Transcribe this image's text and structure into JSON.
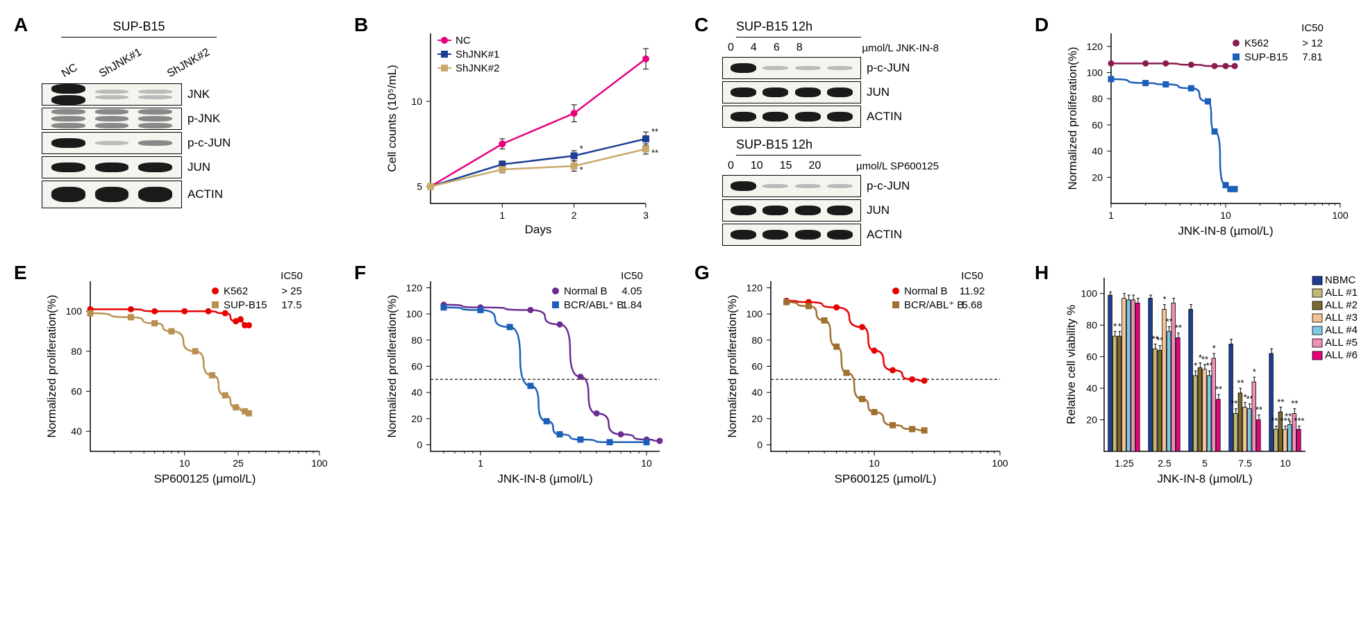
{
  "panelA": {
    "label": "A",
    "header": "SUP-B15",
    "lanes": [
      "NC",
      "ShJNK#1",
      "ShJNK#2"
    ],
    "rows": [
      {
        "label": "JNK",
        "intensities": [
          "strong",
          "faint",
          "faint"
        ],
        "doublet": true
      },
      {
        "label": "p-JNK",
        "intensities": [
          "weak",
          "weak",
          "weak"
        ],
        "triplet": true
      },
      {
        "label": "p-c-JUN",
        "intensities": [
          "strong",
          "faint",
          "weak"
        ]
      },
      {
        "label": "JUN",
        "intensities": [
          "strong",
          "strong",
          "strong"
        ]
      },
      {
        "label": "ACTIN",
        "intensities": [
          "strong",
          "strong",
          "strong"
        ],
        "thick": true
      }
    ]
  },
  "panelB": {
    "label": "B",
    "type": "line",
    "xlabel": "Days",
    "ylabel": "Cell counts (10⁵/mL)",
    "xlim": [
      0,
      3
    ],
    "ylim": [
      4,
      14
    ],
    "xticks": [
      1,
      2,
      3
    ],
    "yticks": [
      5,
      10
    ],
    "series": [
      {
        "name": "NC",
        "color": "#e6007e",
        "marker": "circle",
        "points": [
          [
            0,
            5
          ],
          [
            1,
            7.5
          ],
          [
            2,
            9.3
          ],
          [
            3,
            12.5
          ]
        ],
        "err": [
          0,
          0.3,
          0.5,
          0.6
        ]
      },
      {
        "name": "ShJNK#1",
        "color": "#1c3f94",
        "marker": "square",
        "points": [
          [
            0,
            5
          ],
          [
            1,
            6.3
          ],
          [
            2,
            6.8
          ],
          [
            3,
            7.8
          ]
        ],
        "err": [
          0,
          0.2,
          0.3,
          0.4
        ],
        "sig": [
          "",
          "",
          "*",
          "**"
        ]
      },
      {
        "name": "ShJNK#2",
        "color": "#c9a96a",
        "marker": "square",
        "points": [
          [
            0,
            5
          ],
          [
            1,
            6.0
          ],
          [
            2,
            6.2
          ],
          [
            3,
            7.2
          ]
        ],
        "err": [
          0,
          0.2,
          0.3,
          0.3
        ],
        "sig": [
          "",
          "",
          "*",
          "**"
        ]
      }
    ],
    "legend_pos": "top-left",
    "tick_fontsize": 14,
    "label_fontsize": 17
  },
  "panelC": {
    "label": "C",
    "blocks": [
      {
        "header": "SUP-B15 12h",
        "doses": [
          "0",
          "4",
          "6",
          "8"
        ],
        "dose_label": "µmol/L JNK-IN-8",
        "rows": [
          {
            "label": "p-c-JUN",
            "intensities": [
              "strong",
              "faint",
              "faint",
              "faint"
            ]
          },
          {
            "label": "JUN",
            "intensities": [
              "strong",
              "strong",
              "strong",
              "strong"
            ]
          },
          {
            "label": "ACTIN",
            "intensities": [
              "strong",
              "strong",
              "strong",
              "strong"
            ]
          }
        ]
      },
      {
        "header": "SUP-B15 12h",
        "doses": [
          "0",
          "10",
          "15",
          "20"
        ],
        "dose_label": "µmol/L SP600125",
        "rows": [
          {
            "label": "p-c-JUN",
            "intensities": [
              "strong",
              "faint",
              "faint",
              "faint"
            ]
          },
          {
            "label": "JUN",
            "intensities": [
              "strong",
              "strong",
              "strong",
              "strong"
            ]
          },
          {
            "label": "ACTIN",
            "intensities": [
              "strong",
              "strong",
              "strong",
              "strong"
            ]
          }
        ]
      }
    ]
  },
  "panelD": {
    "label": "D",
    "type": "dose-response",
    "xlabel": "JNK-IN-8 (µmol/L)",
    "ylabel": "Normalized proliferation(%)",
    "xscale": "log",
    "xlim": [
      1,
      100
    ],
    "ylim": [
      0,
      130
    ],
    "xticks": [
      1,
      10,
      100
    ],
    "yticks": [
      20,
      40,
      60,
      80,
      100,
      120
    ],
    "ic50_header": "IC50",
    "series": [
      {
        "name": "K562",
        "color": "#8b1a4f",
        "marker": "circle",
        "ic50": "> 12",
        "points": [
          [
            1,
            107
          ],
          [
            2,
            107
          ],
          [
            3,
            107
          ],
          [
            5,
            106
          ],
          [
            8,
            105
          ],
          [
            10,
            105
          ],
          [
            12,
            105
          ]
        ]
      },
      {
        "name": "SUP-B15",
        "color": "#1c5fb8",
        "marker": "square",
        "ic50": "7.81",
        "points": [
          [
            1,
            95
          ],
          [
            2,
            92
          ],
          [
            3,
            91
          ],
          [
            5,
            88
          ],
          [
            7,
            78
          ],
          [
            8,
            55
          ],
          [
            10,
            14
          ],
          [
            11,
            11
          ],
          [
            12,
            11
          ]
        ]
      }
    ],
    "tick_fontsize": 14,
    "label_fontsize": 17
  },
  "panelE": {
    "label": "E",
    "type": "dose-response",
    "xlabel": "SP600125 (µmol/L)",
    "ylabel": "Normalized proliferation(%)",
    "xscale": "log",
    "xlim": [
      2,
      100
    ],
    "ylim": [
      30,
      115
    ],
    "xticks": [
      10,
      25,
      100
    ],
    "yticks": [
      40,
      60,
      80,
      100
    ],
    "ic50_header": "IC50",
    "series": [
      {
        "name": "K562",
        "color": "#e60000",
        "marker": "circle",
        "ic50": "> 25",
        "points": [
          [
            2,
            101
          ],
          [
            4,
            101
          ],
          [
            6,
            100
          ],
          [
            10,
            100
          ],
          [
            15,
            100
          ],
          [
            20,
            99
          ],
          [
            24,
            95
          ],
          [
            26,
            96
          ],
          [
            28,
            93
          ],
          [
            30,
            93
          ]
        ]
      },
      {
        "name": "SUP-B15",
        "color": "#b89050",
        "marker": "square",
        "ic50": "17.5",
        "points": [
          [
            2,
            99
          ],
          [
            4,
            97
          ],
          [
            6,
            94
          ],
          [
            8,
            90
          ],
          [
            12,
            80
          ],
          [
            16,
            68
          ],
          [
            20,
            58
          ],
          [
            24,
            52
          ],
          [
            28,
            50
          ],
          [
            30,
            49
          ]
        ]
      }
    ],
    "tick_fontsize": 14,
    "label_fontsize": 17
  },
  "panelF": {
    "label": "F",
    "type": "dose-response",
    "xlabel": "JNK-IN-8 (µmol/L)",
    "ylabel": "Normalized proliferation(%)",
    "xscale": "log",
    "xlim": [
      0.5,
      12
    ],
    "ylim": [
      -5,
      125
    ],
    "xticks": [
      1,
      10
    ],
    "yticks": [
      0,
      20,
      40,
      60,
      80,
      100,
      120
    ],
    "ic50_header": "IC50",
    "dashed_at": 50,
    "series": [
      {
        "name": "Normal B",
        "color": "#6b2c91",
        "marker": "circle",
        "ic50": "4.05",
        "points": [
          [
            0.6,
            107
          ],
          [
            1,
            105
          ],
          [
            2,
            103
          ],
          [
            3,
            92
          ],
          [
            4,
            52
          ],
          [
            5,
            24
          ],
          [
            7,
            8
          ],
          [
            10,
            4
          ],
          [
            12,
            3
          ]
        ]
      },
      {
        "name": "BCR/ABL⁺ B",
        "color": "#1c5fb8",
        "marker": "square",
        "ic50": "1.84",
        "points": [
          [
            0.6,
            105
          ],
          [
            1,
            103
          ],
          [
            1.5,
            90
          ],
          [
            2,
            45
          ],
          [
            2.5,
            18
          ],
          [
            3,
            8
          ],
          [
            4,
            4
          ],
          [
            6,
            2
          ],
          [
            10,
            2
          ]
        ]
      }
    ],
    "tick_fontsize": 14,
    "label_fontsize": 17
  },
  "panelG": {
    "label": "G",
    "type": "dose-response",
    "xlabel": "SP600125 (µmol/L)",
    "ylabel": "Normalized proliferation(%)",
    "xscale": "log",
    "xlim": [
      1.5,
      100
    ],
    "ylim": [
      -5,
      125
    ],
    "xticks": [
      10,
      100
    ],
    "yticks": [
      0,
      20,
      40,
      60,
      80,
      100,
      120
    ],
    "ic50_header": "IC50",
    "dashed_at": 50,
    "series": [
      {
        "name": "Normal B",
        "color": "#e60000",
        "marker": "circle",
        "ic50": "11.92",
        "points": [
          [
            2,
            110
          ],
          [
            3,
            109
          ],
          [
            5,
            105
          ],
          [
            8,
            90
          ],
          [
            10,
            72
          ],
          [
            14,
            57
          ],
          [
            20,
            50
          ],
          [
            25,
            49
          ]
        ]
      },
      {
        "name": "BCR/ABL⁺ B",
        "color": "#a07030",
        "marker": "square",
        "ic50": "5.68",
        "points": [
          [
            2,
            109
          ],
          [
            3,
            106
          ],
          [
            4,
            95
          ],
          [
            5,
            75
          ],
          [
            6,
            55
          ],
          [
            8,
            35
          ],
          [
            10,
            25
          ],
          [
            14,
            15
          ],
          [
            20,
            12
          ],
          [
            25,
            11
          ]
        ]
      }
    ],
    "tick_fontsize": 14,
    "label_fontsize": 17
  },
  "panelH": {
    "label": "H",
    "type": "grouped-bar",
    "xlabel": "JNK-IN-8 (µmol/L)",
    "ylabel": "Relative cell viability %",
    "categories": [
      "1.25",
      "2.5",
      "5",
      "7.5",
      "10"
    ],
    "ylim": [
      0,
      110
    ],
    "yticks": [
      20,
      40,
      60,
      80,
      100
    ],
    "groups": [
      {
        "name": "NBMC",
        "color": "#1c3f94"
      },
      {
        "name": "ALL #1",
        "color": "#c4b878"
      },
      {
        "name": "ALL #2",
        "color": "#7a6a30"
      },
      {
        "name": "ALL #3",
        "color": "#f5c396"
      },
      {
        "name": "ALL #4",
        "color": "#7ec8e3"
      },
      {
        "name": "ALL #5",
        "color": "#f090b8"
      },
      {
        "name": "ALL #6",
        "color": "#e6007e"
      }
    ],
    "values": [
      [
        99,
        97,
        90,
        68,
        62
      ],
      [
        73,
        65,
        48,
        24,
        14
      ],
      [
        73,
        64,
        53,
        37,
        25
      ],
      [
        97,
        90,
        52,
        28,
        14
      ],
      [
        96,
        76,
        48,
        27,
        17
      ],
      [
        96,
        94,
        59,
        44,
        24
      ],
      [
        94,
        72,
        33,
        20,
        14
      ]
    ],
    "errors": [
      [
        2,
        2,
        3,
        3,
        3
      ],
      [
        3,
        3,
        3,
        3,
        2
      ],
      [
        3,
        3,
        3,
        3,
        3
      ],
      [
        3,
        3,
        3,
        3,
        2
      ],
      [
        3,
        3,
        3,
        3,
        2
      ],
      [
        3,
        3,
        3,
        3,
        3
      ],
      [
        3,
        3,
        3,
        3,
        2
      ]
    ],
    "sig": [
      [
        "",
        "",
        "",
        "",
        ""
      ],
      [
        "*",
        "**",
        "*",
        "***",
        "***"
      ],
      [
        "*",
        "**",
        "*",
        "**",
        "**"
      ],
      [
        "",
        "*",
        "**",
        "*",
        "***"
      ],
      [
        "",
        "**",
        "**",
        "**",
        "***"
      ],
      [
        "",
        "",
        "*",
        "*",
        "**"
      ],
      [
        "",
        "**",
        "**",
        "**",
        "***"
      ]
    ],
    "bar_width": 0.1,
    "tick_fontsize": 14,
    "label_fontsize": 17
  }
}
